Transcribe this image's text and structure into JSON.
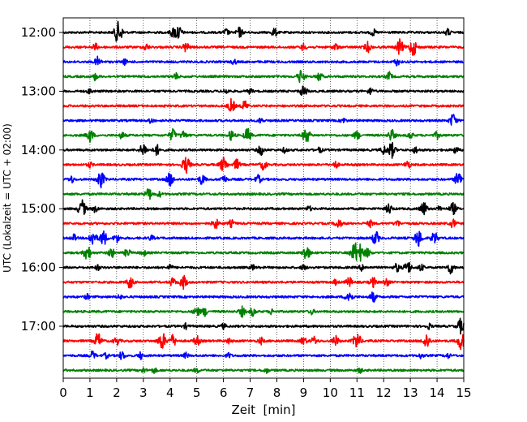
{
  "chart_data": {
    "type": "line",
    "xlabel": "Zeit  [min]",
    "ylabel": "UTC (Lokalzeit = UTC + 02:00)",
    "xlim": [
      0,
      15
    ],
    "xticks": [
      "0",
      "1",
      "2",
      "3",
      "4",
      "5",
      "6",
      "7",
      "8",
      "9",
      "10",
      "11",
      "12",
      "13",
      "14",
      "15"
    ],
    "x_grid": "dotted",
    "ytick_labels": [
      "12:00",
      "13:00",
      "14:00",
      "15:00",
      "16:00",
      "17:00"
    ],
    "trace_start": "12:00",
    "trace_interval_min": 15,
    "trace_count": 24,
    "trace_colors": [
      "#000000",
      "#ff0000",
      "#0000ff",
      "#008000"
    ],
    "events": [
      [
        [
          2.0,
          0.6
        ],
        [
          2.1,
          0.9
        ],
        [
          4.3,
          0.9
        ],
        [
          4.1,
          0.5
        ],
        [
          6.6,
          0.6
        ],
        [
          7.9,
          0.5
        ],
        [
          6.1,
          0.4
        ],
        [
          11.6,
          0.4
        ],
        [
          14.4,
          0.4
        ]
      ],
      [
        [
          1.2,
          0.4
        ],
        [
          3.1,
          0.4
        ],
        [
          4.6,
          0.6
        ],
        [
          10.2,
          0.4
        ],
        [
          11.4,
          0.6
        ],
        [
          12.6,
          0.9
        ],
        [
          13.1,
          1.0
        ],
        [
          9.0,
          0.4
        ]
      ],
      [
        [
          1.3,
          0.6
        ],
        [
          2.3,
          0.3
        ],
        [
          6.4,
          0.3
        ],
        [
          12.5,
          0.4
        ]
      ],
      [
        [
          1.2,
          0.4
        ],
        [
          4.2,
          0.4
        ],
        [
          8.9,
          0.8
        ],
        [
          9.6,
          0.5
        ],
        [
          12.2,
          0.5
        ]
      ],
      [
        [
          1.0,
          0.3
        ],
        [
          6.1,
          0.3
        ],
        [
          7.0,
          0.3
        ],
        [
          9.0,
          0.7
        ],
        [
          11.5,
          0.4
        ]
      ],
      [
        [
          6.3,
          0.8
        ],
        [
          6.8,
          0.6
        ]
      ],
      [
        [
          3.3,
          0.3
        ],
        [
          7.4,
          0.3
        ],
        [
          10.5,
          0.3
        ],
        [
          14.6,
          0.8
        ]
      ],
      [
        [
          1.0,
          0.8
        ],
        [
          2.2,
          0.4
        ],
        [
          4.1,
          0.7
        ],
        [
          4.5,
          0.5
        ],
        [
          6.3,
          0.6
        ],
        [
          6.9,
          0.8
        ],
        [
          9.1,
          0.9
        ],
        [
          11.0,
          0.5
        ],
        [
          12.3,
          0.7
        ],
        [
          13.0,
          0.4
        ],
        [
          14.0,
          0.4
        ]
      ],
      [
        [
          3.0,
          0.8
        ],
        [
          3.5,
          0.6
        ],
        [
          7.4,
          0.6
        ],
        [
          8.3,
          0.3
        ],
        [
          9.6,
          0.3
        ],
        [
          12.0,
          0.5
        ],
        [
          12.3,
          0.9
        ],
        [
          13.2,
          0.4
        ],
        [
          14.7,
          0.4
        ]
      ],
      [
        [
          1.0,
          0.3
        ],
        [
          4.6,
          1.0
        ],
        [
          6.0,
          0.9
        ],
        [
          6.5,
          0.6
        ],
        [
          7.5,
          0.6
        ],
        [
          10.2,
          0.4
        ],
        [
          12.9,
          0.5
        ]
      ],
      [
        [
          0.3,
          0.4
        ],
        [
          1.4,
          1.0
        ],
        [
          4.0,
          0.8
        ],
        [
          5.2,
          0.6
        ],
        [
          6.0,
          0.5
        ],
        [
          7.3,
          0.5
        ],
        [
          14.8,
          0.9
        ]
      ],
      [
        [
          3.2,
          0.7
        ],
        [
          3.6,
          0.3
        ]
      ],
      [
        [
          0.7,
          1.0
        ],
        [
          1.2,
          0.4
        ],
        [
          9.2,
          0.3
        ],
        [
          12.2,
          0.6
        ],
        [
          13.5,
          0.8
        ],
        [
          14.1,
          0.3
        ],
        [
          14.6,
          0.7
        ]
      ],
      [
        [
          5.7,
          0.6
        ],
        [
          6.3,
          0.4
        ],
        [
          10.3,
          0.6
        ],
        [
          11.5,
          0.4
        ],
        [
          12.5,
          0.4
        ],
        [
          14.6,
          0.5
        ]
      ],
      [
        [
          0.4,
          0.4
        ],
        [
          1.1,
          0.9
        ],
        [
          1.5,
          0.9
        ],
        [
          2.0,
          0.5
        ],
        [
          3.3,
          0.3
        ],
        [
          11.7,
          0.8
        ],
        [
          13.3,
          1.0
        ],
        [
          13.9,
          0.7
        ]
      ],
      [
        [
          0.9,
          0.9
        ],
        [
          1.8,
          0.6
        ],
        [
          2.4,
          0.5
        ],
        [
          3.0,
          0.4
        ],
        [
          9.1,
          0.9
        ],
        [
          10.9,
          1.0
        ],
        [
          11.1,
          1.0
        ],
        [
          11.4,
          0.5
        ]
      ],
      [
        [
          1.3,
          0.3
        ],
        [
          4.0,
          0.3
        ],
        [
          7.1,
          0.3
        ],
        [
          9.0,
          0.3
        ],
        [
          11.2,
          0.4
        ],
        [
          12.5,
          0.5
        ],
        [
          12.9,
          0.8
        ],
        [
          13.4,
          0.4
        ],
        [
          14.5,
          0.7
        ]
      ],
      [
        [
          2.5,
          0.7
        ],
        [
          4.1,
          0.5
        ],
        [
          4.5,
          0.8
        ],
        [
          10.2,
          0.3
        ],
        [
          10.7,
          0.6
        ],
        [
          11.6,
          0.6
        ],
        [
          12.1,
          0.5
        ]
      ],
      [
        [
          0.9,
          0.3
        ],
        [
          2.1,
          0.3
        ],
        [
          10.7,
          0.8
        ],
        [
          11.6,
          0.6
        ]
      ],
      [
        [
          5.0,
          0.6
        ],
        [
          5.3,
          0.5
        ],
        [
          6.7,
          0.6
        ],
        [
          7.1,
          0.5
        ],
        [
          7.8,
          0.3
        ],
        [
          9.3,
          0.3
        ]
      ],
      [
        [
          4.6,
          0.3
        ],
        [
          6.0,
          0.3
        ],
        [
          13.7,
          0.3
        ],
        [
          14.9,
          0.9
        ]
      ],
      [
        [
          1.3,
          0.9
        ],
        [
          2.0,
          0.5
        ],
        [
          3.7,
          1.0
        ],
        [
          4.1,
          0.7
        ],
        [
          5.0,
          0.6
        ],
        [
          6.2,
          0.3
        ],
        [
          7.4,
          0.4
        ],
        [
          9.0,
          0.5
        ],
        [
          9.4,
          0.5
        ],
        [
          10.2,
          0.6
        ],
        [
          11.0,
          1.0
        ],
        [
          13.6,
          0.9
        ],
        [
          14.9,
          1.0
        ]
      ],
      [
        [
          1.1,
          0.5
        ],
        [
          1.6,
          0.3
        ],
        [
          2.2,
          0.5
        ],
        [
          2.9,
          0.4
        ],
        [
          4.6,
          0.3
        ],
        [
          6.2,
          0.3
        ],
        [
          13.4,
          0.3
        ],
        [
          14.4,
          0.3
        ]
      ],
      [
        [
          3.0,
          0.3
        ],
        [
          3.4,
          0.3
        ],
        [
          5.0,
          0.3
        ],
        [
          7.6,
          0.3
        ],
        [
          11.1,
          0.3
        ]
      ]
    ]
  }
}
